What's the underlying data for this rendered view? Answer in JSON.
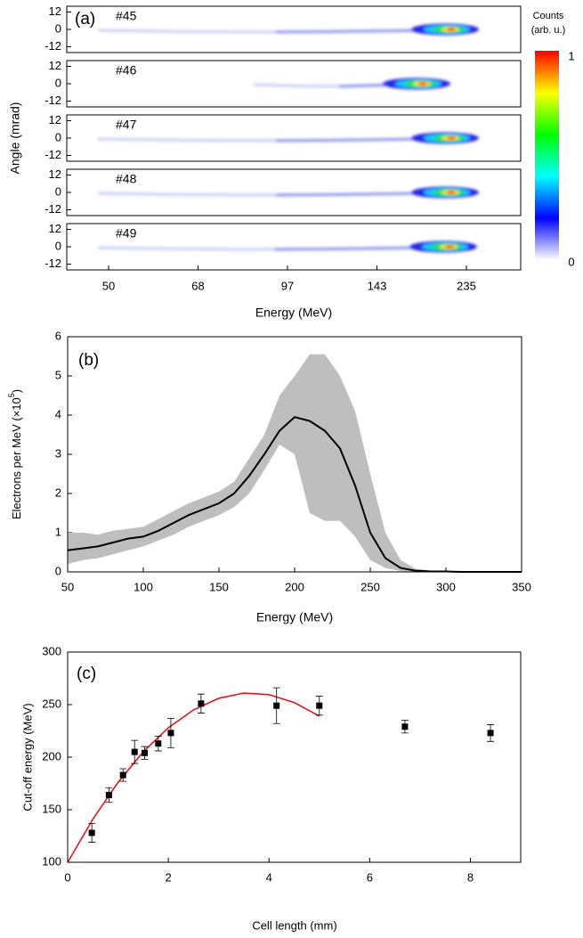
{
  "chart_data": [
    {
      "type": "heatmap",
      "panel_label": "(a)",
      "shots": [
        "#45",
        "#46",
        "#47",
        "#48",
        "#49"
      ],
      "xlabel": "Energy (MeV)",
      "ylabel": "Angle (mrad)",
      "xticks": [
        50,
        68,
        97,
        143,
        235
      ],
      "ylim": [
        -16,
        16
      ],
      "yticks": [
        12,
        0,
        -12
      ],
      "colorbar": {
        "title": [
          "Counts",
          "(arb. u.)"
        ],
        "ticks": [
          1,
          0
        ],
        "colors": [
          "#ff0000",
          "#ffff00",
          "#00ff00",
          "#00ffff",
          "#0000ff",
          "#ffffff"
        ]
      }
    },
    {
      "type": "band-line",
      "panel_label": "(b)",
      "xlabel": "Energy (MeV)",
      "ylabel": [
        "Electrons per MeV (×10",
        "5",
        ")"
      ],
      "xlim": [
        50,
        350
      ],
      "ylim": [
        0,
        6
      ],
      "xticks": [
        50,
        100,
        150,
        200,
        250,
        300,
        350
      ],
      "yticks": [
        0,
        1,
        2,
        3,
        4,
        5,
        6
      ],
      "x": [
        50,
        60,
        70,
        80,
        90,
        100,
        110,
        120,
        130,
        140,
        150,
        160,
        170,
        180,
        190,
        200,
        210,
        220,
        230,
        240,
        250,
        260,
        270,
        280,
        290,
        300,
        310,
        320,
        330,
        340,
        350
      ],
      "values": [
        0.55,
        0.6,
        0.65,
        0.75,
        0.85,
        0.9,
        1.05,
        1.25,
        1.45,
        1.6,
        1.75,
        2.0,
        2.45,
        3.0,
        3.6,
        3.95,
        3.85,
        3.6,
        3.15,
        2.2,
        1.0,
        0.35,
        0.1,
        0.03,
        0.01,
        0.01,
        0,
        0,
        0,
        0,
        0
      ],
      "band_upper": [
        1.0,
        1.0,
        0.95,
        1.05,
        1.1,
        1.15,
        1.35,
        1.55,
        1.75,
        1.9,
        2.05,
        2.3,
        2.9,
        3.5,
        4.5,
        5.0,
        5.55,
        5.55,
        5.0,
        4.1,
        2.5,
        1.0,
        0.3,
        0.08,
        0.03,
        0.01,
        0,
        0,
        0,
        0,
        0
      ],
      "band_lower": [
        0.2,
        0.3,
        0.35,
        0.45,
        0.55,
        0.65,
        0.8,
        0.95,
        1.15,
        1.3,
        1.45,
        1.65,
        2.0,
        2.6,
        3.25,
        3.0,
        1.5,
        1.3,
        1.3,
        0.9,
        0.3,
        0.1,
        0.02,
        0,
        0,
        0,
        0,
        0,
        0,
        0,
        0
      ],
      "color": "#000000",
      "band_color": "#bebebe"
    },
    {
      "type": "scatter",
      "panel_label": "(c)",
      "xlabel": "Cell length (mm)",
      "ylabel": "Cut-off energy (MeV)",
      "xlim": [
        0,
        9
      ],
      "ylim": [
        100,
        300
      ],
      "xticks": [
        0,
        2,
        4,
        6,
        8
      ],
      "yticks": [
        100,
        150,
        200,
        250,
        300
      ],
      "x": [
        0.48,
        0.82,
        1.1,
        1.33,
        1.53,
        1.8,
        2.05,
        2.65,
        4.15,
        5.0,
        6.7,
        8.4
      ],
      "values": [
        128,
        164,
        183,
        205,
        204,
        213,
        223,
        251,
        249,
        249,
        229,
        223
      ],
      "errors": [
        9,
        7,
        6,
        11,
        6,
        7,
        14,
        9,
        17,
        9,
        6,
        8
      ],
      "color": "#000000",
      "fit": {
        "x": [
          0,
          0.5,
          1,
          1.5,
          2,
          2.5,
          3,
          3.5,
          4,
          4.5,
          5
        ],
        "values": [
          100,
          141,
          176,
          205,
          228,
          245,
          256,
          261,
          259.5,
          252,
          239
        ],
        "color": "#e8141c"
      }
    }
  ]
}
